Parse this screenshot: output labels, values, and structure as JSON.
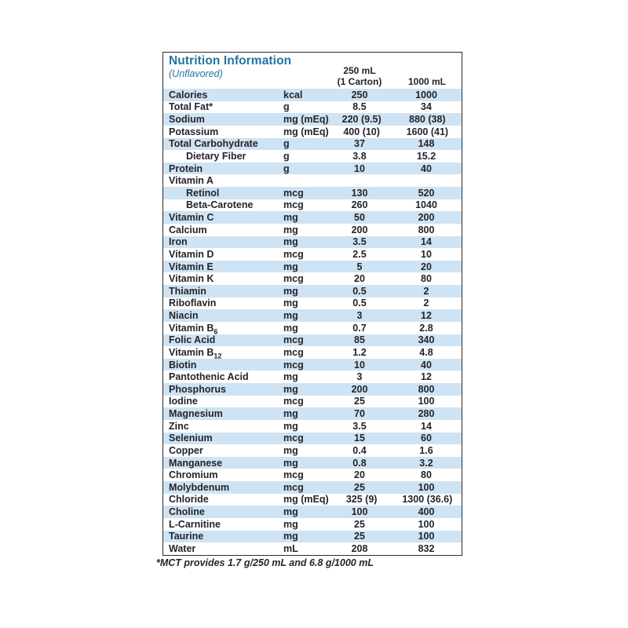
{
  "table": {
    "title": "Nutrition Information",
    "subtitle": "(Unflavored)",
    "col_headers": {
      "serving1_line1": "250 mL",
      "serving1_line2": "(1 Carton)",
      "serving2": "1000 mL"
    },
    "rows": [
      {
        "label": "Calories",
        "unit": "kcal",
        "v250": "250",
        "v1000": "1000",
        "indent": false
      },
      {
        "label": "Total Fat*",
        "unit": "g",
        "v250": "8.5",
        "v1000": "34",
        "indent": false
      },
      {
        "label": "Sodium",
        "unit": "mg (mEq)",
        "v250": "220 (9.5)",
        "v1000": "880 (38)",
        "indent": false
      },
      {
        "label": "Potassium",
        "unit": "mg (mEq)",
        "v250": "400 (10)",
        "v1000": "1600 (41)",
        "indent": false
      },
      {
        "label": "Total Carbohydrate",
        "unit": "g",
        "v250": "37",
        "v1000": "148",
        "indent": false
      },
      {
        "label": "Dietary Fiber",
        "unit": "g",
        "v250": "3.8",
        "v1000": "15.2",
        "indent": true
      },
      {
        "label": "Protein",
        "unit": "g",
        "v250": "10",
        "v1000": "40",
        "indent": false
      },
      {
        "label": "Vitamin A",
        "unit": "",
        "v250": "",
        "v1000": "",
        "indent": false
      },
      {
        "label": "Retinol",
        "unit": "mcg",
        "v250": "130",
        "v1000": "520",
        "indent": true
      },
      {
        "label": "Beta-Carotene",
        "unit": "mcg",
        "v250": "260",
        "v1000": "1040",
        "indent": true
      },
      {
        "label": "Vitamin C",
        "unit": "mg",
        "v250": "50",
        "v1000": "200",
        "indent": false
      },
      {
        "label": "Calcium",
        "unit": "mg",
        "v250": "200",
        "v1000": "800",
        "indent": false
      },
      {
        "label": "Iron",
        "unit": "mg",
        "v250": "3.5",
        "v1000": "14",
        "indent": false
      },
      {
        "label": "Vitamin D",
        "unit": "mcg",
        "v250": "2.5",
        "v1000": "10",
        "indent": false
      },
      {
        "label": "Vitamin E",
        "unit": "mg",
        "v250": "5",
        "v1000": "20",
        "indent": false
      },
      {
        "label": "Vitamin K",
        "unit": "mcg",
        "v250": "20",
        "v1000": "80",
        "indent": false
      },
      {
        "label": "Thiamin",
        "unit": "mg",
        "v250": "0.5",
        "v1000": "2",
        "indent": false
      },
      {
        "label": "Riboflavin",
        "unit": "mg",
        "v250": "0.5",
        "v1000": "2",
        "indent": false
      },
      {
        "label": "Niacin",
        "unit": "mg",
        "v250": "3",
        "v1000": "12",
        "indent": false
      },
      {
        "label": "Vitamin B",
        "sub": "6",
        "unit": "mg",
        "v250": "0.7",
        "v1000": "2.8",
        "indent": false
      },
      {
        "label": "Folic Acid",
        "unit": "mcg",
        "v250": "85",
        "v1000": "340",
        "indent": false
      },
      {
        "label": "Vitamin B",
        "sub": "12",
        "unit": "mcg",
        "v250": "1.2",
        "v1000": "4.8",
        "indent": false
      },
      {
        "label": "Biotin",
        "unit": "mcg",
        "v250": "10",
        "v1000": "40",
        "indent": false
      },
      {
        "label": "Pantothenic Acid",
        "unit": "mg",
        "v250": "3",
        "v1000": "12",
        "indent": false
      },
      {
        "label": "Phosphorus",
        "unit": "mg",
        "v250": "200",
        "v1000": "800",
        "indent": false
      },
      {
        "label": "Iodine",
        "unit": "mcg",
        "v250": "25",
        "v1000": "100",
        "indent": false
      },
      {
        "label": "Magnesium",
        "unit": "mg",
        "v250": "70",
        "v1000": "280",
        "indent": false
      },
      {
        "label": "Zinc",
        "unit": "mg",
        "v250": "3.5",
        "v1000": "14",
        "indent": false
      },
      {
        "label": "Selenium",
        "unit": "mcg",
        "v250": "15",
        "v1000": "60",
        "indent": false
      },
      {
        "label": "Copper",
        "unit": "mg",
        "v250": "0.4",
        "v1000": "1.6",
        "indent": false
      },
      {
        "label": "Manganese",
        "unit": "mg",
        "v250": "0.8",
        "v1000": "3.2",
        "indent": false
      },
      {
        "label": "Chromium",
        "unit": "mcg",
        "v250": "20",
        "v1000": "80",
        "indent": false
      },
      {
        "label": "Molybdenum",
        "unit": "mcg",
        "v250": "25",
        "v1000": "100",
        "indent": false
      },
      {
        "label": "Chloride",
        "unit": "mg (mEq)",
        "v250": "325 (9)",
        "v1000": "1300 (36.6)",
        "indent": false
      },
      {
        "label": "Choline",
        "unit": "mg",
        "v250": "100",
        "v1000": "400",
        "indent": false
      },
      {
        "label": "L-Carnitine",
        "unit": "mg",
        "v250": "25",
        "v1000": "100",
        "indent": false
      },
      {
        "label": "Taurine",
        "unit": "mg",
        "v250": "25",
        "v1000": "100",
        "indent": false
      },
      {
        "label": "Water",
        "unit": "mL",
        "v250": "208",
        "v1000": "832",
        "indent": false
      }
    ],
    "footnote": "*MCT provides 1.7 g/250 mL and 6.8 g/1000 mL",
    "colors": {
      "row_alt_bg": "#CEE3F3",
      "title_blue": "#2374A3",
      "text": "#242429",
      "border": "#2D2D2D"
    }
  }
}
